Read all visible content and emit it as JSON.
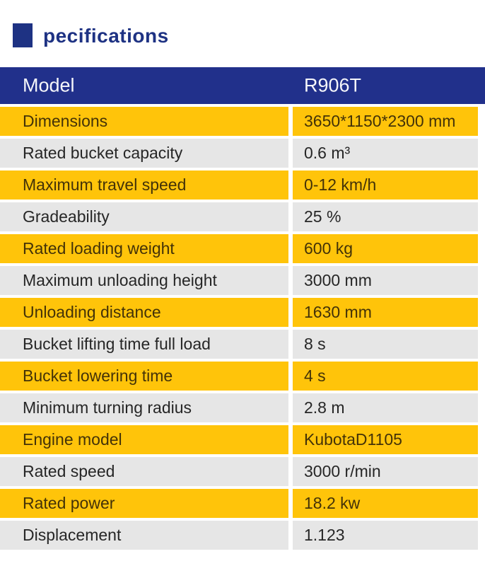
{
  "page": {
    "background": "#ffffff"
  },
  "section_header": {
    "title": "pecifications",
    "title_color": "#1e3283",
    "marker_icon": "blue-square-bullet"
  },
  "table": {
    "header": {
      "label": "Model",
      "value": "R906T",
      "bg": "#21308b",
      "text_color": "#f5f6fa"
    },
    "colors": {
      "yellow_bg": "#ffc40a",
      "gray_bg": "#e6e6e6",
      "yellow_text": "#433208",
      "gray_text": "#262626"
    },
    "rows": [
      {
        "label": "Dimensions",
        "value": "3650*1150*2300 mm",
        "style": "yellow"
      },
      {
        "label": "Rated bucket capacity",
        "value": "0.6 m³",
        "style": "gray"
      },
      {
        "label": "Maximum travel speed",
        "value": "0-12 km/h",
        "style": "yellow"
      },
      {
        "label": "Gradeability",
        "value": "25 %",
        "style": "gray"
      },
      {
        "label": "Rated loading weight",
        "value": "600 kg",
        "style": "yellow"
      },
      {
        "label": "Maximum unloading height",
        "value": "3000 mm",
        "style": "gray"
      },
      {
        "label": "Unloading distance",
        "value": "1630 mm",
        "style": "yellow"
      },
      {
        "label": "Bucket lifting time full load",
        "value": "8 s",
        "style": "gray"
      },
      {
        "label": "Bucket lowering time",
        "value": "4 s",
        "style": "yellow"
      },
      {
        "label": "Minimum turning radius",
        "value": "2.8 m",
        "style": "gray"
      },
      {
        "label": "Engine model",
        "value": "KubotaD1105",
        "style": "yellow"
      },
      {
        "label": "Rated speed",
        "value": "3000 r/min",
        "style": "gray"
      },
      {
        "label": "Rated power",
        "value": "18.2 kw",
        "style": "yellow"
      },
      {
        "label": "Displacement",
        "value": "1.123",
        "style": "gray"
      }
    ]
  }
}
